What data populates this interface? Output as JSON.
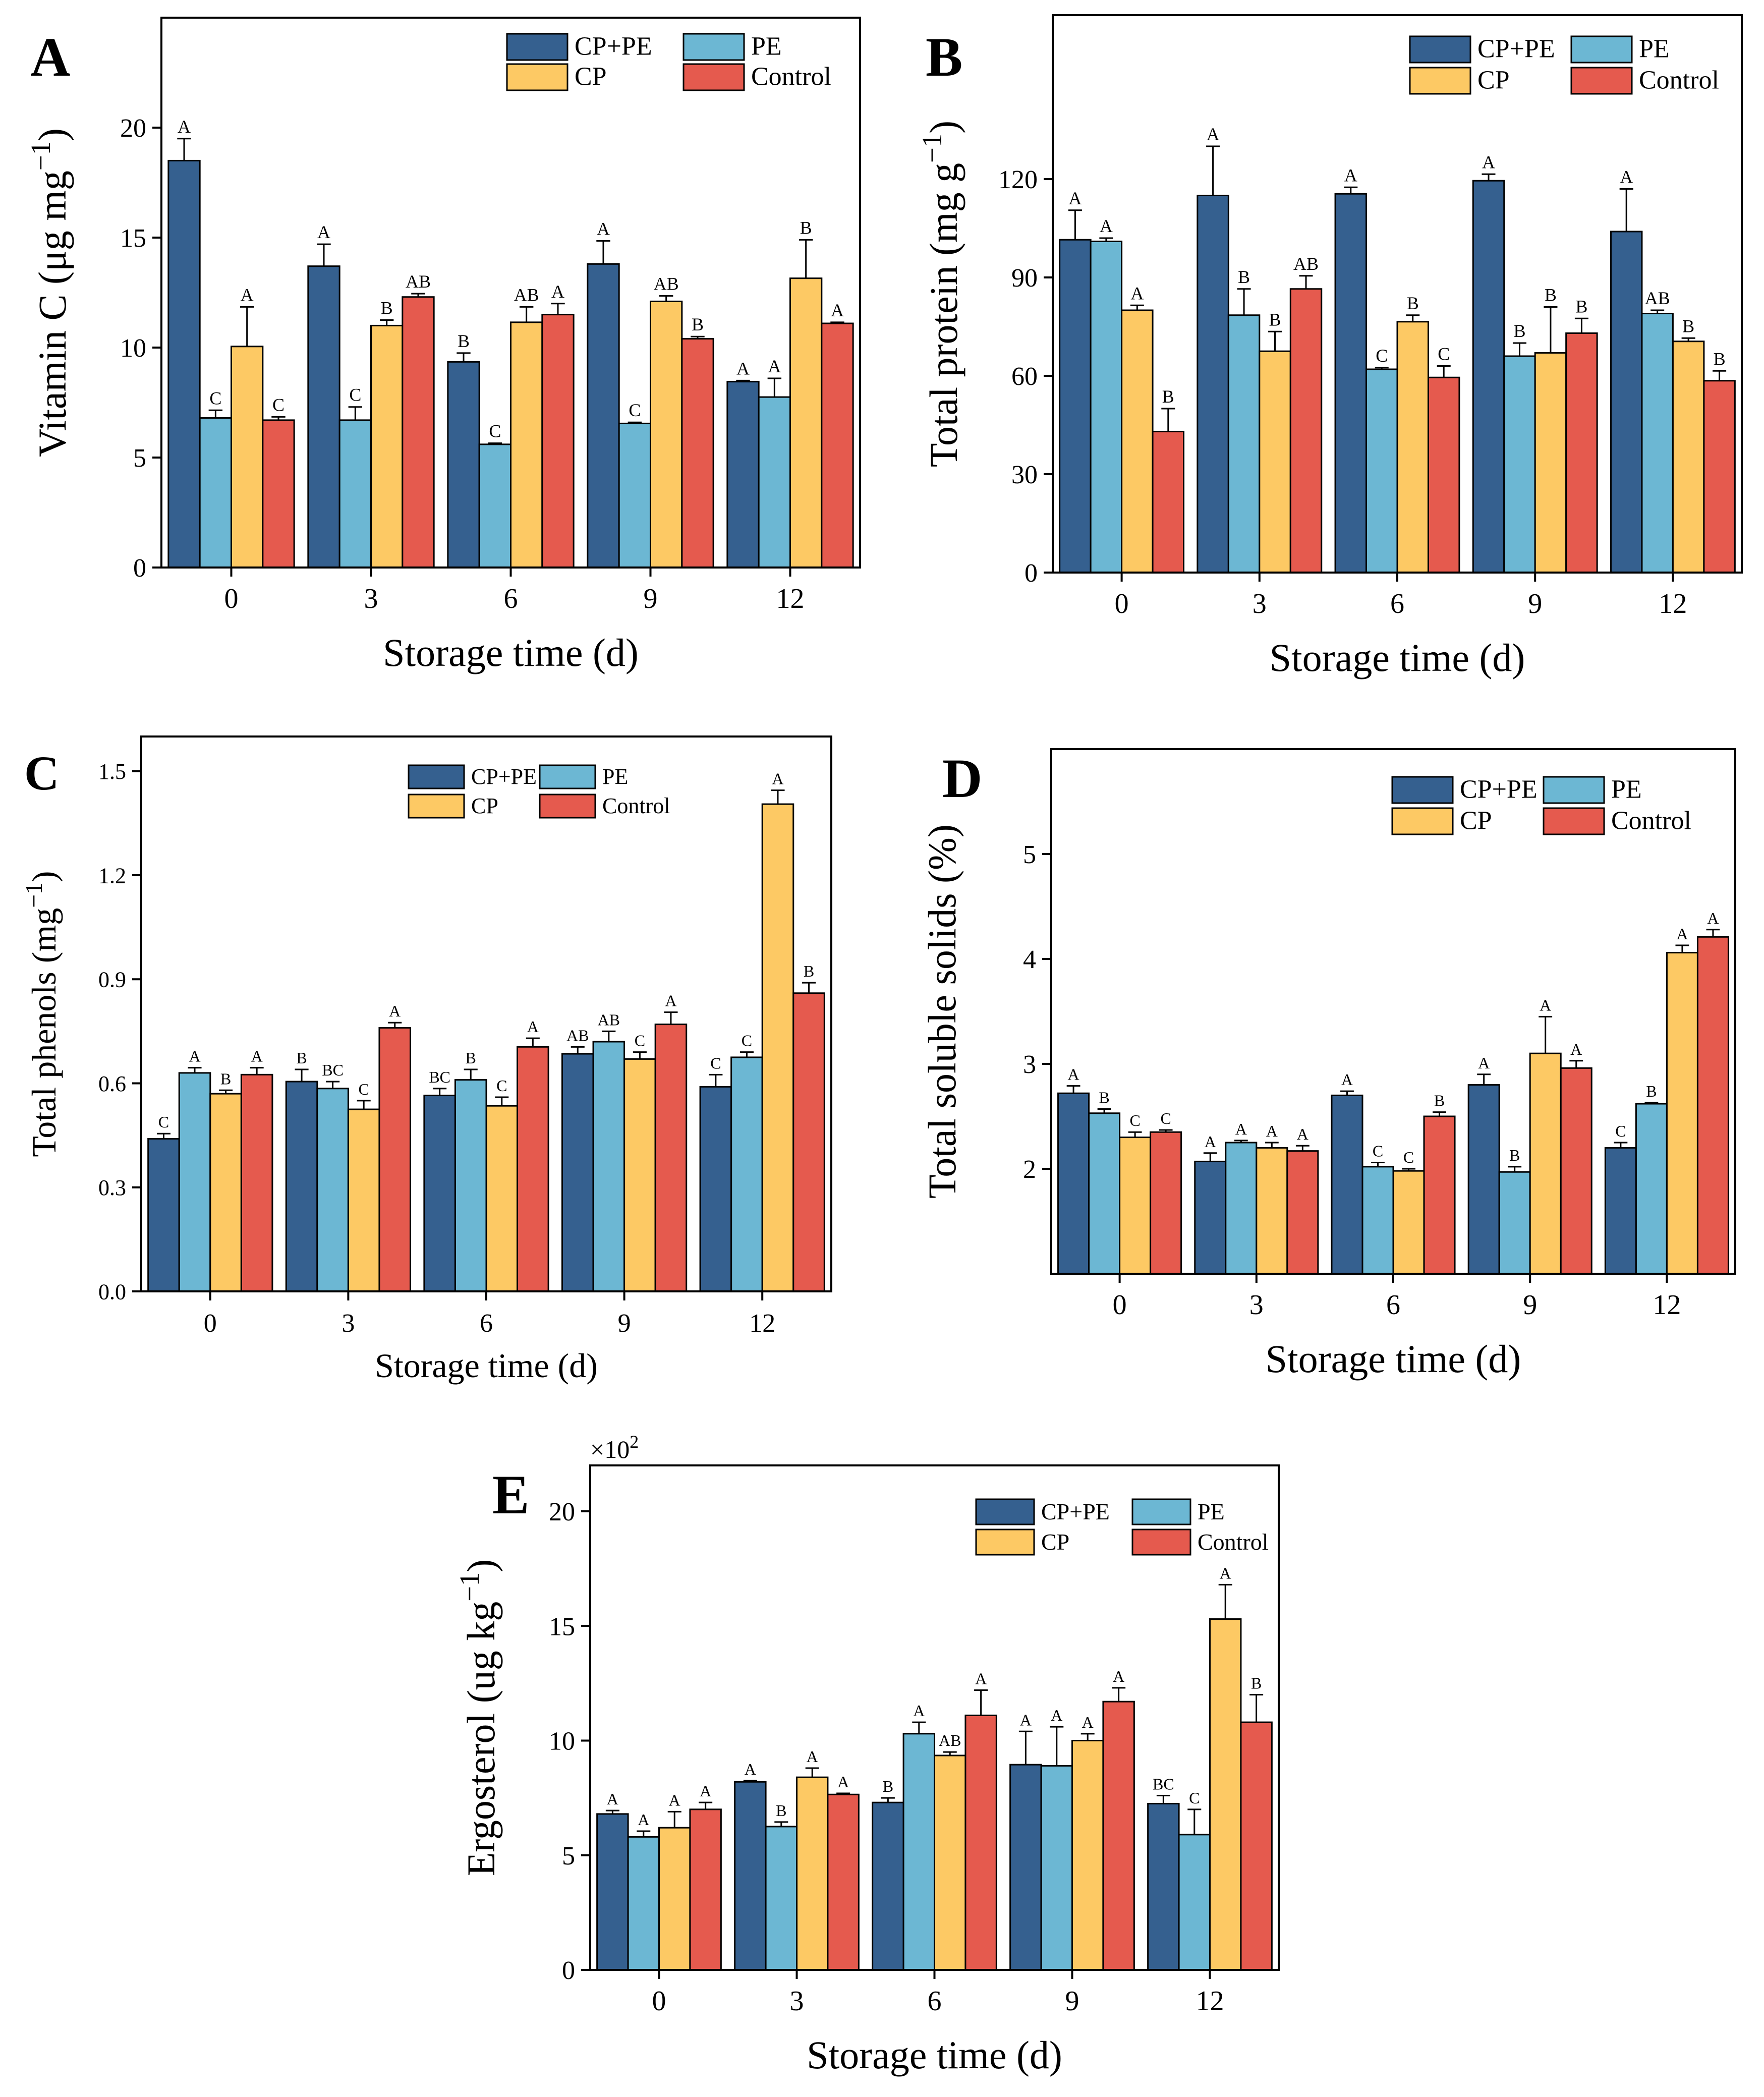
{
  "colors": {
    "CP+PE": "#35608f",
    "PE": "#6cb7d3",
    "CP": "#fdc964",
    "Control": "#e55a4e"
  },
  "legend": [
    "CP+PE",
    "PE",
    "CP",
    "Control"
  ],
  "chart_data": [
    {
      "id": "A",
      "type": "bar",
      "panel_label": "A",
      "xlabel": "Storage time (d)",
      "ylabel_main": "Vitamin C (μg mg",
      "ylabel_sup": "−1",
      "ylabel_close": ")",
      "categories": [
        "0",
        "3",
        "6",
        "9",
        "12"
      ],
      "ylim": [
        0,
        25
      ],
      "yticks": [
        0,
        5,
        10,
        15,
        20
      ],
      "ytick_labels": [
        "0",
        "5",
        "10",
        "15",
        "20"
      ],
      "series": [
        {
          "name": "CP+PE",
          "values": [
            18.5,
            13.7,
            9.35,
            13.8,
            8.45
          ],
          "errors": [
            1.0,
            1.0,
            0.4,
            1.05,
            0.05
          ],
          "letters": [
            "A",
            "A",
            "B",
            "A",
            "A"
          ]
        },
        {
          "name": "PE",
          "values": [
            6.8,
            6.7,
            5.6,
            6.55,
            7.75
          ],
          "errors": [
            0.35,
            0.6,
            0.05,
            0.05,
            0.85
          ],
          "letters": [
            "C",
            "C",
            "C",
            "C",
            "A"
          ]
        },
        {
          "name": "CP",
          "values": [
            10.05,
            11.0,
            11.15,
            12.1,
            13.15
          ],
          "errors": [
            1.8,
            0.25,
            0.7,
            0.25,
            1.75
          ],
          "letters": [
            "A",
            "B",
            "AB",
            "AB",
            "B"
          ]
        },
        {
          "name": "Control",
          "values": [
            6.7,
            12.3,
            11.5,
            10.4,
            11.1
          ],
          "errors": [
            0.15,
            0.15,
            0.5,
            0.1,
            0.05
          ],
          "letters": [
            "C",
            "AB",
            "A",
            "B",
            "A"
          ]
        }
      ]
    },
    {
      "id": "B",
      "type": "bar",
      "panel_label": "B",
      "xlabel": "Storage time (d)",
      "ylabel_main": "Total protein (mg g",
      "ylabel_sup": "−1",
      "ylabel_close": ")",
      "categories": [
        "0",
        "3",
        "6",
        "9",
        "12"
      ],
      "ylim": [
        0,
        170
      ],
      "yticks": [
        0,
        30,
        60,
        90,
        120
      ],
      "ytick_labels": [
        "0",
        "30",
        "60",
        "90",
        "120"
      ],
      "series": [
        {
          "name": "CP+PE",
          "values": [
            101.5,
            115.0,
            115.5,
            119.5,
            104.0
          ],
          "errors": [
            9.0,
            15.0,
            2.0,
            2.0,
            13.0
          ],
          "letters": [
            "A",
            "A",
            "A",
            "A",
            "A"
          ]
        },
        {
          "name": "PE",
          "values": [
            101.0,
            78.5,
            62.0,
            66.0,
            79.0
          ],
          "errors": [
            1.0,
            8.0,
            0.5,
            4.0,
            1.0
          ],
          "letters": [
            "A",
            "B",
            "C",
            "B",
            "AB"
          ]
        },
        {
          "name": "CP",
          "values": [
            80.0,
            67.5,
            76.5,
            67.0,
            70.5
          ],
          "errors": [
            1.5,
            6.0,
            2.0,
            14.0,
            1.0
          ],
          "letters": [
            "A",
            "B",
            "B",
            "B",
            "B"
          ]
        },
        {
          "name": "Control",
          "values": [
            43.0,
            86.5,
            59.5,
            73.0,
            58.5
          ],
          "errors": [
            7.0,
            4.0,
            3.5,
            4.5,
            3.0
          ],
          "letters": [
            "B",
            "AB",
            "C",
            "B",
            "B"
          ]
        }
      ]
    },
    {
      "id": "C",
      "type": "bar",
      "panel_label": "C",
      "xlabel": "Storage time (d)",
      "ylabel_main": "Total phenols (mg",
      "ylabel_sup": "−1",
      "ylabel_close": ")",
      "categories": [
        "0",
        "3",
        "6",
        "9",
        "12"
      ],
      "ylim": [
        0,
        1.6
      ],
      "yticks": [
        0,
        0.3,
        0.6,
        0.9,
        1.2,
        1.5
      ],
      "ytick_labels": [
        "0.0",
        "0.3",
        "0.6",
        "0.9",
        "1.2",
        "1.5"
      ],
      "series": [
        {
          "name": "CP+PE",
          "values": [
            0.44,
            0.605,
            0.565,
            0.685,
            0.59
          ],
          "errors": [
            0.015,
            0.035,
            0.02,
            0.02,
            0.035
          ],
          "letters": [
            "C",
            "B",
            "BC",
            "AB",
            "C"
          ]
        },
        {
          "name": "PE",
          "values": [
            0.63,
            0.585,
            0.61,
            0.72,
            0.675
          ],
          "errors": [
            0.015,
            0.02,
            0.03,
            0.03,
            0.015
          ],
          "letters": [
            "A",
            "BC",
            "B",
            "AB",
            "C"
          ]
        },
        {
          "name": "CP",
          "values": [
            0.57,
            0.525,
            0.535,
            0.67,
            1.405
          ],
          "errors": [
            0.01,
            0.025,
            0.025,
            0.02,
            0.04
          ],
          "letters": [
            "B",
            "C",
            "C",
            "C",
            "A"
          ]
        },
        {
          "name": "Control",
          "values": [
            0.625,
            0.76,
            0.705,
            0.77,
            0.86
          ],
          "errors": [
            0.02,
            0.015,
            0.025,
            0.035,
            0.03
          ],
          "letters": [
            "A",
            "A",
            "A",
            "A",
            "B"
          ]
        }
      ]
    },
    {
      "id": "D",
      "type": "bar",
      "panel_label": "D",
      "xlabel": "Storage time (d)",
      "ylabel_main": "Total soluble solids (%)",
      "ylabel_sup": "",
      "ylabel_close": "",
      "categories": [
        "0",
        "3",
        "6",
        "9",
        "12"
      ],
      "ylim": [
        1,
        6
      ],
      "yticks": [
        2,
        3,
        4,
        5
      ],
      "ytick_labels": [
        "2",
        "3",
        "4",
        "5"
      ],
      "series": [
        {
          "name": "CP+PE",
          "values": [
            2.72,
            2.07,
            2.7,
            2.8,
            2.2
          ],
          "errors": [
            0.07,
            0.08,
            0.04,
            0.1,
            0.05
          ],
          "letters": [
            "A",
            "A",
            "A",
            "A",
            "C"
          ]
        },
        {
          "name": "PE",
          "values": [
            2.53,
            2.25,
            2.02,
            1.97,
            2.62
          ],
          "errors": [
            0.04,
            0.02,
            0.04,
            0.05,
            0.01
          ],
          "letters": [
            "B",
            "A",
            "C",
            "B",
            "B"
          ]
        },
        {
          "name": "CP",
          "values": [
            2.3,
            2.2,
            1.98,
            3.1,
            4.06
          ],
          "errors": [
            0.05,
            0.05,
            0.02,
            0.35,
            0.07
          ],
          "letters": [
            "C",
            "A",
            "C",
            "A",
            "A"
          ]
        },
        {
          "name": "Control",
          "values": [
            2.35,
            2.17,
            2.5,
            2.96,
            4.21
          ],
          "errors": [
            0.02,
            0.05,
            0.04,
            0.07,
            0.07
          ],
          "letters": [
            "C",
            "A",
            "B",
            "A",
            "A"
          ]
        }
      ]
    },
    {
      "id": "E",
      "type": "bar",
      "panel_label": "E",
      "xlabel": "Storage time (d)",
      "ylabel_main": "Ergosterol (ug kg",
      "ylabel_sup": "−1",
      "ylabel_close": ")",
      "multiplier_base": "×10",
      "multiplier_exp": "2",
      "categories": [
        "0",
        "3",
        "6",
        "9",
        "12"
      ],
      "ylim": [
        0,
        22
      ],
      "yticks": [
        0,
        5,
        10,
        15,
        20
      ],
      "ytick_labels": [
        "0",
        "5",
        "10",
        "15",
        "20"
      ],
      "series": [
        {
          "name": "CP+PE",
          "values": [
            6.8,
            8.2,
            7.3,
            8.95,
            7.25
          ],
          "errors": [
            0.15,
            0.05,
            0.2,
            1.45,
            0.35
          ],
          "letters": [
            "A",
            "A",
            "B",
            "A",
            "BC"
          ]
        },
        {
          "name": "PE",
          "values": [
            5.8,
            6.25,
            10.3,
            8.9,
            5.9
          ],
          "errors": [
            0.25,
            0.2,
            0.5,
            1.7,
            1.1
          ],
          "letters": [
            "A",
            "B",
            "A",
            "A",
            "C"
          ]
        },
        {
          "name": "CP",
          "values": [
            6.2,
            8.4,
            9.35,
            10.0,
            15.3
          ],
          "errors": [
            0.7,
            0.4,
            0.15,
            0.3,
            1.5
          ],
          "letters": [
            "A",
            "A",
            "AB",
            "A",
            "A"
          ]
        },
        {
          "name": "Control",
          "values": [
            7.0,
            7.65,
            11.1,
            11.7,
            10.8
          ],
          "errors": [
            0.3,
            0.05,
            1.1,
            0.6,
            1.2
          ],
          "letters": [
            "A",
            "A",
            "A",
            "A",
            "B"
          ]
        }
      ]
    }
  ]
}
